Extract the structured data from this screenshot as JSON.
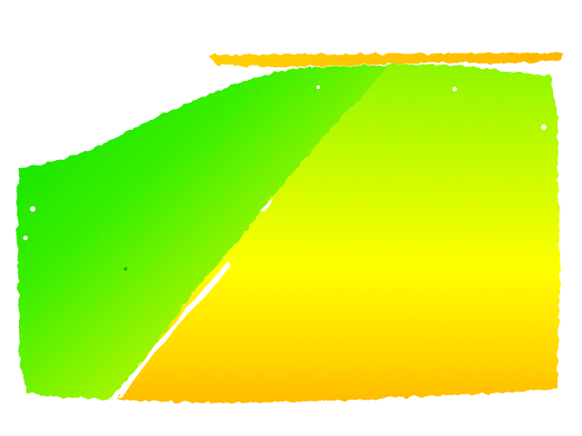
{
  "image": {
    "description_tag": "colorized-depth-map",
    "background_color": "#ffffff",
    "palette": {
      "far_green": "#00e600",
      "mid_green": "#5ff000",
      "lime": "#b8fa00",
      "yellow": "#ffff00",
      "gold": "#ffd200",
      "orange": "#ffb400",
      "top_strip": "#ffc000",
      "hole": "#ffffff"
    }
  }
}
